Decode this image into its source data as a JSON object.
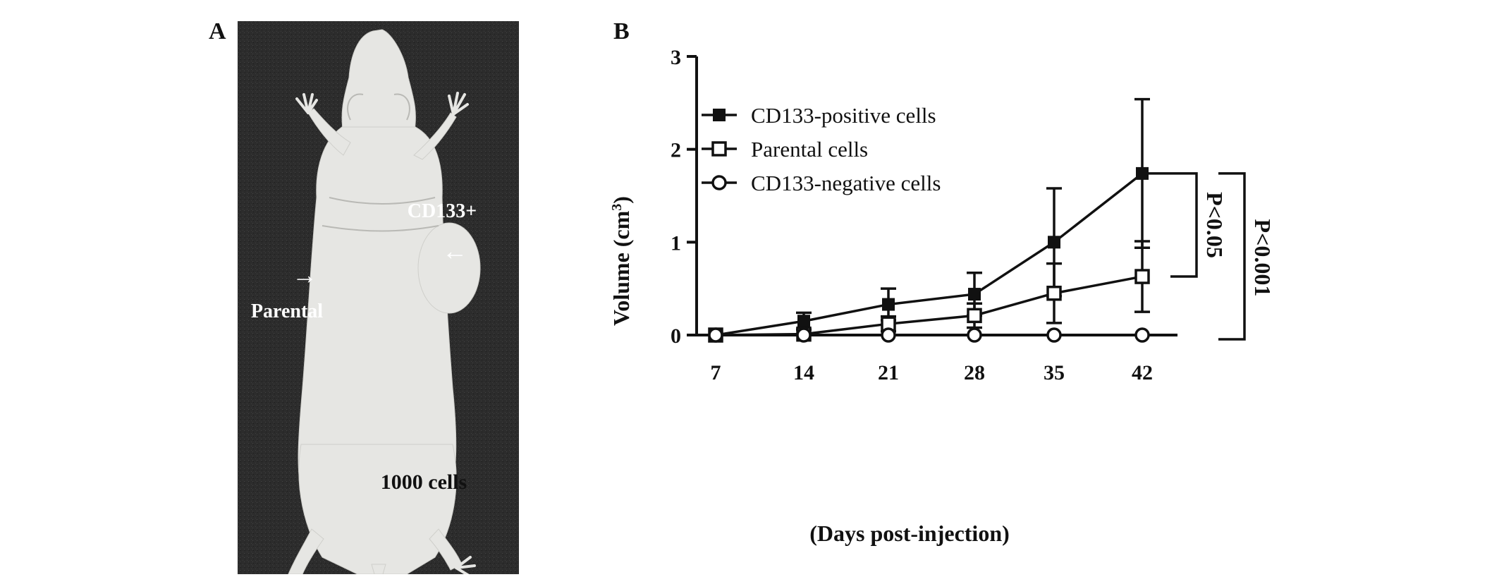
{
  "panels": {
    "a": "A",
    "b": "B"
  },
  "photo": {
    "label_cd133": "CD133+",
    "label_parental": "Parental",
    "label_cells": "1000 cells",
    "arrow_right": "→",
    "arrow_left": "←"
  },
  "colors": {
    "line": "#111111",
    "photo_bg": "#2a2a2a",
    "mouse": "#e6e6e3"
  },
  "chart_data": {
    "type": "line",
    "xlabel": "(Days post-injection)",
    "ylabel_main": "Volume (cm",
    "ylabel_sup": "3",
    "ylabel_end": ")",
    "x": [
      7,
      14,
      21,
      28,
      35,
      42
    ],
    "x_ticks": [
      "7",
      "14",
      "21",
      "28",
      "35",
      "42"
    ],
    "ylim": [
      0,
      3
    ],
    "y_ticks": [
      "0",
      "1",
      "2",
      "3"
    ],
    "series": [
      {
        "name": "CD133-positive cells",
        "marker": "filled-square",
        "values": [
          0.0,
          0.15,
          0.33,
          0.44,
          1.0,
          1.74
        ],
        "err": [
          0.0,
          0.09,
          0.17,
          0.23,
          0.58,
          0.8
        ]
      },
      {
        "name": "Parental cells",
        "marker": "open-square",
        "values": [
          0.0,
          0.01,
          0.12,
          0.21,
          0.45,
          0.63
        ],
        "err": [
          0.0,
          0.0,
          0.08,
          0.13,
          0.32,
          0.38
        ]
      },
      {
        "name": "CD133-negative cells",
        "marker": "open-circle",
        "values": [
          0.0,
          0.0,
          0.0,
          0.0,
          0.0,
          0.0
        ],
        "err": [
          0.0,
          0.0,
          0.0,
          0.0,
          0.0,
          0.0
        ]
      }
    ],
    "annotations": [
      {
        "text": "P<0.05",
        "between": [
          "CD133-positive cells",
          "Parental cells"
        ]
      },
      {
        "text": "P<0.001",
        "between": [
          "CD133-positive cells",
          "CD133-negative cells"
        ]
      }
    ],
    "legend": "top-left",
    "grid": false
  }
}
